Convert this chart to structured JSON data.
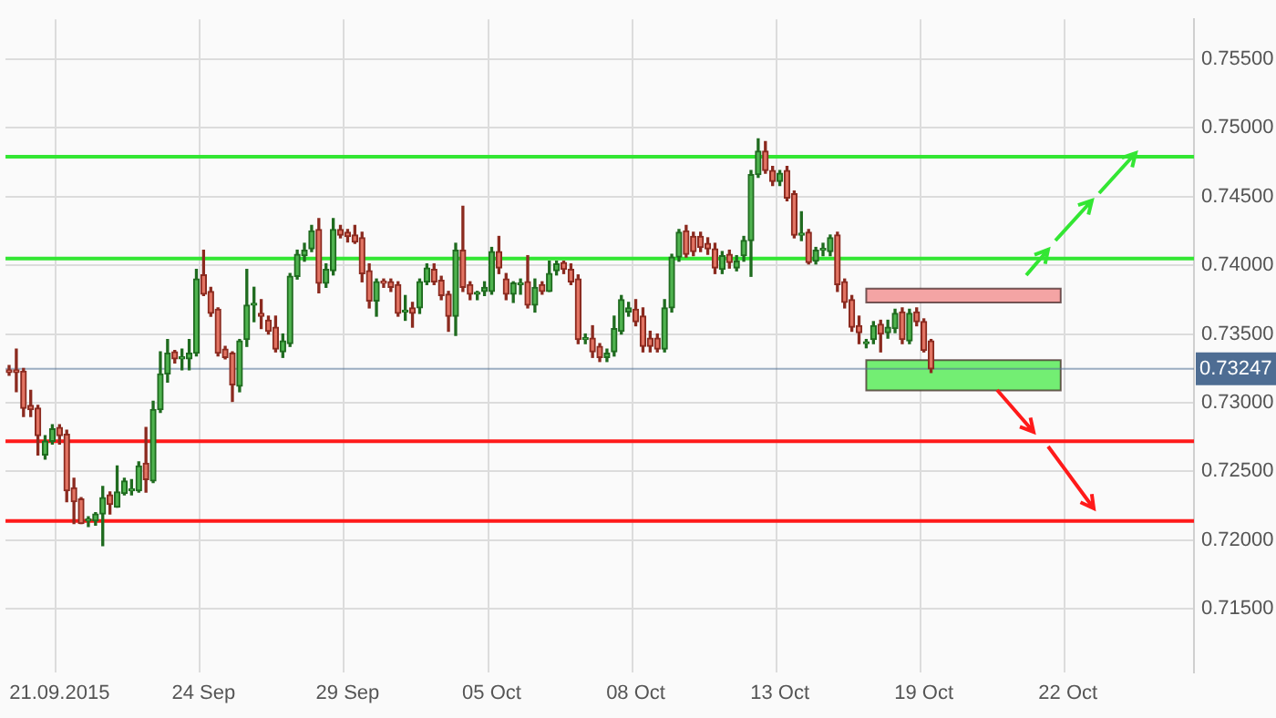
{
  "chart_data": {
    "type": "candlestick",
    "categories": [
      null,
      null,
      null,
      null,
      null,
      null,
      null,
      "21.09.2015",
      null,
      null,
      null,
      null,
      null,
      null,
      null,
      null,
      null,
      null,
      null,
      null,
      null,
      null,
      null,
      null,
      null,
      null,
      null,
      "24 Sep",
      null,
      null,
      null,
      null,
      null,
      null,
      null,
      null,
      null,
      null,
      null,
      null,
      null,
      null,
      null,
      null,
      null,
      null,
      null,
      "29 Sep",
      null,
      null,
      null,
      null,
      null,
      null,
      null,
      null,
      null,
      null,
      null,
      null,
      null,
      null,
      null,
      null,
      null,
      null,
      null,
      "05 Oct",
      null,
      null,
      null,
      null,
      null,
      null,
      null,
      null,
      null,
      null,
      null,
      null,
      null,
      null,
      null,
      null,
      null,
      null,
      null,
      "08 Oct",
      null,
      null,
      null,
      null,
      null,
      null,
      null,
      null,
      null,
      null,
      null,
      null,
      null,
      null,
      null,
      null,
      null,
      null,
      null,
      "13 Oct",
      null,
      null,
      null,
      null,
      null,
      null,
      null,
      null,
      null,
      null,
      null,
      null,
      null,
      null,
      null,
      null,
      null,
      null,
      null,
      "19 Oct",
      null,
      null,
      null,
      null,
      null,
      null,
      null,
      null,
      null,
      null,
      null,
      null,
      null,
      null,
      null,
      null,
      null,
      null,
      null,
      "22 Oct",
      null,
      null,
      null,
      null,
      null,
      null,
      null,
      null,
      null,
      null,
      null,
      null,
      null,
      null,
      null,
      null,
      null
    ],
    "ohlc": [
      [
        0.7324,
        0.7327,
        0.732,
        0.7322
      ],
      [
        0.7324,
        0.7339,
        0.7308,
        0.7322
      ],
      [
        0.7323,
        0.7325,
        0.729,
        0.7296
      ],
      [
        0.7298,
        0.7309,
        0.729,
        0.7295
      ],
      [
        0.7296,
        0.7298,
        0.7262,
        0.7276
      ],
      [
        0.7262,
        0.7276,
        0.7259,
        0.7272
      ],
      [
        0.7272,
        0.7284,
        0.727,
        0.7281
      ],
      [
        0.7282,
        0.7284,
        0.727,
        0.7276
      ],
      [
        0.7277,
        0.728,
        0.7228,
        0.7236
      ],
      [
        0.7238,
        0.7245,
        0.7212,
        0.7228
      ],
      [
        0.723,
        0.7231,
        0.7212,
        0.7212
      ],
      [
        0.7214,
        0.7217,
        0.721,
        0.7214
      ],
      [
        0.7214,
        0.722,
        0.7211,
        0.7219
      ],
      [
        0.7219,
        0.7239,
        0.7196,
        0.7231
      ],
      [
        0.7233,
        0.7235,
        0.7219,
        0.7226
      ],
      [
        0.7224,
        0.7254,
        0.7224,
        0.7235
      ],
      [
        0.7234,
        0.7245,
        0.7233,
        0.7243
      ],
      [
        0.7236,
        0.7244,
        0.7233,
        0.7236
      ],
      [
        0.7236,
        0.7257,
        0.7235,
        0.7254
      ],
      [
        0.7256,
        0.7282,
        0.7235,
        0.7244
      ],
      [
        0.7243,
        0.7301,
        0.7242,
        0.7295
      ],
      [
        0.7295,
        0.7337,
        0.7293,
        0.7321
      ],
      [
        0.7321,
        0.7346,
        0.7315,
        0.7336
      ],
      [
        0.7337,
        0.7338,
        0.7329,
        0.7332
      ],
      [
        0.7332,
        0.7339,
        0.7324,
        0.7332
      ],
      [
        0.7332,
        0.7346,
        0.7324,
        0.7336
      ],
      [
        0.7336,
        0.7397,
        0.7334,
        0.739
      ],
      [
        0.7393,
        0.7411,
        0.7378,
        0.7379
      ],
      [
        0.7381,
        0.7384,
        0.7363,
        0.7365
      ],
      [
        0.7368,
        0.7369,
        0.7334,
        0.7336
      ],
      [
        0.7339,
        0.7341,
        0.7332,
        0.7333
      ],
      [
        0.7336,
        0.7337,
        0.7301,
        0.7313
      ],
      [
        0.7312,
        0.7346,
        0.7308,
        0.7345
      ],
      [
        0.7346,
        0.7397,
        0.7341,
        0.7371
      ],
      [
        0.7371,
        0.7384,
        0.7359,
        0.7371
      ],
      [
        0.7365,
        0.7375,
        0.7354,
        0.7363
      ],
      [
        0.736,
        0.7363,
        0.735,
        0.7352
      ],
      [
        0.7355,
        0.7363,
        0.7337,
        0.7339
      ],
      [
        0.7337,
        0.735,
        0.7333,
        0.7345
      ],
      [
        0.7343,
        0.7394,
        0.7341,
        0.7392
      ],
      [
        0.7392,
        0.7411,
        0.739,
        0.7408
      ],
      [
        0.7407,
        0.7416,
        0.7403,
        0.7411
      ],
      [
        0.7412,
        0.7429,
        0.741,
        0.7425
      ],
      [
        0.7426,
        0.7434,
        0.738,
        0.7387
      ],
      [
        0.7387,
        0.7401,
        0.7384,
        0.7397
      ],
      [
        0.7396,
        0.7434,
        0.7393,
        0.7426
      ],
      [
        0.7426,
        0.7429,
        0.742,
        0.7422
      ],
      [
        0.7424,
        0.7426,
        0.7417,
        0.7421
      ],
      [
        0.7422,
        0.7429,
        0.7416,
        0.7417
      ],
      [
        0.742,
        0.7424,
        0.7388,
        0.7394
      ],
      [
        0.7396,
        0.7401,
        0.7369,
        0.7374
      ],
      [
        0.7374,
        0.739,
        0.7363,
        0.7388
      ],
      [
        0.7388,
        0.739,
        0.7384,
        0.7387
      ],
      [
        0.7388,
        0.739,
        0.7381,
        0.7384
      ],
      [
        0.7386,
        0.7388,
        0.7363,
        0.7365
      ],
      [
        0.7366,
        0.7378,
        0.736,
        0.7366
      ],
      [
        0.7369,
        0.7373,
        0.7355,
        0.7365
      ],
      [
        0.7369,
        0.739,
        0.7365,
        0.7388
      ],
      [
        0.7388,
        0.7401,
        0.7386,
        0.7398
      ],
      [
        0.7397,
        0.7401,
        0.7386,
        0.7388
      ],
      [
        0.7389,
        0.7392,
        0.7375,
        0.7378
      ],
      [
        0.7379,
        0.7381,
        0.7352,
        0.7363
      ],
      [
        0.7363,
        0.7416,
        0.7349,
        0.7411
      ],
      [
        0.7411,
        0.7443,
        0.7381,
        0.7384
      ],
      [
        0.7386,
        0.7388,
        0.7375,
        0.7379
      ],
      [
        0.7379,
        0.7381,
        0.7375,
        0.7379
      ],
      [
        0.7381,
        0.7388,
        0.7378,
        0.7384
      ],
      [
        0.7381,
        0.7413,
        0.7379,
        0.741
      ],
      [
        0.741,
        0.7421,
        0.7394,
        0.7398
      ],
      [
        0.739,
        0.7394,
        0.7375,
        0.7379
      ],
      [
        0.7379,
        0.7388,
        0.7373,
        0.7387
      ],
      [
        0.7386,
        0.739,
        0.7379,
        0.7386
      ],
      [
        0.7388,
        0.7407,
        0.7369,
        0.7371
      ],
      [
        0.7371,
        0.739,
        0.7366,
        0.7384
      ],
      [
        0.7386,
        0.7388,
        0.7379,
        0.7381
      ],
      [
        0.7381,
        0.7403,
        0.7381,
        0.7394
      ],
      [
        0.7396,
        0.7403,
        0.7393,
        0.7401
      ],
      [
        0.7402,
        0.7403,
        0.7394,
        0.7397
      ],
      [
        0.7397,
        0.7401,
        0.7386,
        0.7388
      ],
      [
        0.739,
        0.7393,
        0.7343,
        0.7346
      ],
      [
        0.7346,
        0.735,
        0.7343,
        0.7346
      ],
      [
        0.7347,
        0.7356,
        0.7333,
        0.7337
      ],
      [
        0.7341,
        0.7343,
        0.733,
        0.7333
      ],
      [
        0.7333,
        0.7339,
        0.733,
        0.7336
      ],
      [
        0.7337,
        0.7363,
        0.7334,
        0.7354
      ],
      [
        0.7352,
        0.7378,
        0.735,
        0.7375
      ],
      [
        0.7366,
        0.7373,
        0.7363,
        0.7369
      ],
      [
        0.7368,
        0.7375,
        0.7356,
        0.7359
      ],
      [
        0.7363,
        0.7369,
        0.7337,
        0.7341
      ],
      [
        0.7347,
        0.7352,
        0.7337,
        0.7341
      ],
      [
        0.7347,
        0.735,
        0.7337,
        0.7339
      ],
      [
        0.7339,
        0.7375,
        0.7337,
        0.7369
      ],
      [
        0.7369,
        0.7408,
        0.7366,
        0.7406
      ],
      [
        0.7406,
        0.7426,
        0.7403,
        0.7424
      ],
      [
        0.7425,
        0.7429,
        0.7406,
        0.7408
      ],
      [
        0.7421,
        0.7424,
        0.7407,
        0.741
      ],
      [
        0.7421,
        0.7424,
        0.741,
        0.7413
      ],
      [
        0.7416,
        0.742,
        0.7408,
        0.7412
      ],
      [
        0.7412,
        0.7416,
        0.7394,
        0.7398
      ],
      [
        0.7397,
        0.741,
        0.7394,
        0.7407
      ],
      [
        0.7408,
        0.7411,
        0.7398,
        0.7402
      ],
      [
        0.7398,
        0.7407,
        0.7396,
        0.7403
      ],
      [
        0.7407,
        0.7421,
        0.7403,
        0.7418
      ],
      [
        0.7418,
        0.7469,
        0.7392,
        0.7466
      ],
      [
        0.7466,
        0.7492,
        0.7464,
        0.7483
      ],
      [
        0.7483,
        0.749,
        0.7467,
        0.7469
      ],
      [
        0.7469,
        0.7472,
        0.7458,
        0.7461
      ],
      [
        0.7461,
        0.7469,
        0.7458,
        0.7467
      ],
      [
        0.7469,
        0.7472,
        0.7447,
        0.7449
      ],
      [
        0.7452,
        0.7454,
        0.742,
        0.7422
      ],
      [
        0.7422,
        0.7439,
        0.7418,
        0.7422
      ],
      [
        0.7424,
        0.7426,
        0.7401,
        0.7402
      ],
      [
        0.7403,
        0.7413,
        0.7401,
        0.7411
      ],
      [
        0.7411,
        0.7416,
        0.7407,
        0.7411
      ],
      [
        0.741,
        0.7422,
        0.7407,
        0.742
      ],
      [
        0.7422,
        0.7424,
        0.7381,
        0.7386
      ],
      [
        0.7388,
        0.739,
        0.7369,
        0.7373
      ],
      [
        0.7375,
        0.7378,
        0.7352,
        0.7355
      ],
      [
        0.7356,
        0.7363,
        0.7343,
        0.7351
      ],
      [
        0.7343,
        0.7346,
        0.734,
        0.7343
      ],
      [
        0.7346,
        0.7359,
        0.7343,
        0.7356
      ],
      [
        0.7357,
        0.736,
        0.7337,
        0.735
      ],
      [
        0.7351,
        0.736,
        0.7347,
        0.7355
      ],
      [
        0.7354,
        0.7368,
        0.7351,
        0.7365
      ],
      [
        0.7366,
        0.7369,
        0.7343,
        0.7346
      ],
      [
        0.7345,
        0.7368,
        0.7343,
        0.7365
      ],
      [
        0.7366,
        0.7369,
        0.7356,
        0.7359
      ],
      [
        0.7359,
        0.7361,
        0.7337,
        0.7338
      ],
      [
        0.7345,
        0.7346,
        0.7322,
        0.73247
      ],
      null,
      null,
      null,
      null,
      null,
      null,
      null,
      null,
      null,
      null,
      null,
      null,
      null,
      null,
      null,
      null,
      null,
      null,
      null,
      null,
      null,
      null,
      null,
      null,
      null,
      null,
      null,
      null,
      null,
      null,
      null,
      null,
      null,
      null,
      null,
      null
    ],
    "ylim": [
      0.7104,
      0.7579
    ],
    "yticks": [
      {
        "value": 0.715,
        "label": "0.71500"
      },
      {
        "value": 0.72,
        "label": "0.72000"
      },
      {
        "value": 0.725,
        "label": "0.72500"
      },
      {
        "value": 0.73,
        "label": "0.73000"
      },
      {
        "value": 0.735,
        "label": "0.73500"
      },
      {
        "value": 0.74,
        "label": "0.74000"
      },
      {
        "value": 0.745,
        "label": "0.74500"
      },
      {
        "value": 0.75,
        "label": "0.75000"
      },
      {
        "value": 0.755,
        "label": "0.75500"
      }
    ],
    "ref_lines": [
      {
        "axis": "y",
        "value": 0.7479,
        "color": "#33e633"
      },
      {
        "axis": "y",
        "value": 0.7405,
        "color": "#33e633"
      },
      {
        "axis": "y",
        "value": 0.7272,
        "color": "#ff1a1a"
      },
      {
        "axis": "y",
        "value": 0.7214,
        "color": "#ff1a1a"
      },
      {
        "axis": "y",
        "value": 0.73247,
        "label": "0.73247",
        "color": "#4e6d93"
      }
    ],
    "bands": [
      {
        "axis": "y",
        "from": 0.7373,
        "to": 0.7383,
        "color": "#f4a4a4"
      },
      {
        "axis": "y",
        "from": 0.7309,
        "to": 0.7331,
        "color": "#73ee73"
      }
    ],
    "grid": true,
    "legend": false
  }
}
